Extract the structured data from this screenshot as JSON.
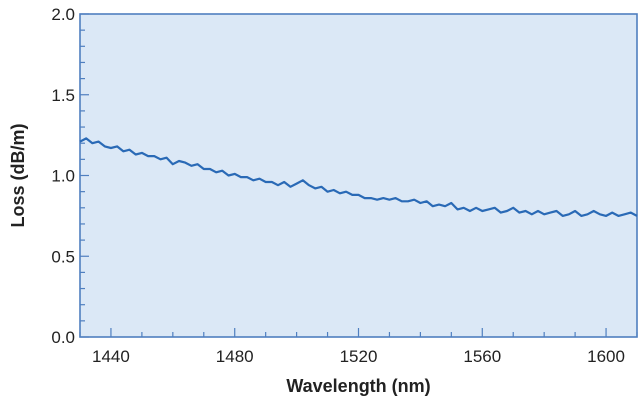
{
  "chart_data": {
    "type": "line",
    "title": "",
    "xlabel": "Wavelength (nm)",
    "ylabel": "Loss (dB/m)",
    "xlim": [
      1430,
      1610
    ],
    "ylim": [
      0,
      2.0
    ],
    "x_ticks": [
      1440,
      1480,
      1520,
      1560,
      1600
    ],
    "x_tick_labels": [
      "1440",
      "1480",
      "1520",
      "1560",
      "1600"
    ],
    "y_ticks": [
      0.0,
      0.5,
      1.0,
      1.5,
      2.0
    ],
    "y_tick_labels": [
      "0.0",
      "0.5",
      "1.0",
      "1.5",
      "2.0"
    ],
    "grid": false,
    "legend": "none",
    "colors": {
      "plot_background": "#dbe8f6",
      "line": "#2a6ab6",
      "axis": "#4f7fc0",
      "text": "#222222"
    },
    "series": [
      {
        "x": [
          1430,
          1432,
          1434,
          1436,
          1438,
          1440,
          1442,
          1444,
          1446,
          1448,
          1450,
          1452,
          1454,
          1456,
          1458,
          1460,
          1462,
          1464,
          1466,
          1468,
          1470,
          1472,
          1474,
          1476,
          1478,
          1480,
          1482,
          1484,
          1486,
          1488,
          1490,
          1492,
          1494,
          1496,
          1498,
          1500,
          1502,
          1504,
          1506,
          1508,
          1510,
          1512,
          1514,
          1516,
          1518,
          1520,
          1522,
          1524,
          1526,
          1528,
          1530,
          1532,
          1534,
          1536,
          1538,
          1540,
          1542,
          1544,
          1546,
          1548,
          1550,
          1552,
          1554,
          1556,
          1558,
          1560,
          1562,
          1564,
          1566,
          1568,
          1570,
          1572,
          1574,
          1576,
          1578,
          1580,
          1582,
          1584,
          1586,
          1588,
          1590,
          1592,
          1594,
          1596,
          1598,
          1600,
          1602,
          1604,
          1606,
          1608,
          1610
        ],
        "y": [
          1.21,
          1.23,
          1.2,
          1.21,
          1.18,
          1.17,
          1.18,
          1.15,
          1.16,
          1.13,
          1.14,
          1.12,
          1.12,
          1.1,
          1.11,
          1.07,
          1.09,
          1.08,
          1.06,
          1.07,
          1.04,
          1.04,
          1.02,
          1.03,
          1.0,
          1.01,
          0.99,
          0.99,
          0.97,
          0.98,
          0.96,
          0.96,
          0.94,
          0.96,
          0.93,
          0.95,
          0.97,
          0.94,
          0.92,
          0.93,
          0.9,
          0.91,
          0.89,
          0.9,
          0.88,
          0.88,
          0.86,
          0.86,
          0.85,
          0.86,
          0.85,
          0.86,
          0.84,
          0.84,
          0.85,
          0.83,
          0.84,
          0.81,
          0.82,
          0.81,
          0.83,
          0.79,
          0.8,
          0.78,
          0.8,
          0.78,
          0.79,
          0.8,
          0.77,
          0.78,
          0.8,
          0.77,
          0.78,
          0.76,
          0.78,
          0.76,
          0.77,
          0.78,
          0.75,
          0.76,
          0.78,
          0.75,
          0.76,
          0.78,
          0.76,
          0.75,
          0.77,
          0.75,
          0.76,
          0.77,
          0.75
        ]
      }
    ]
  }
}
